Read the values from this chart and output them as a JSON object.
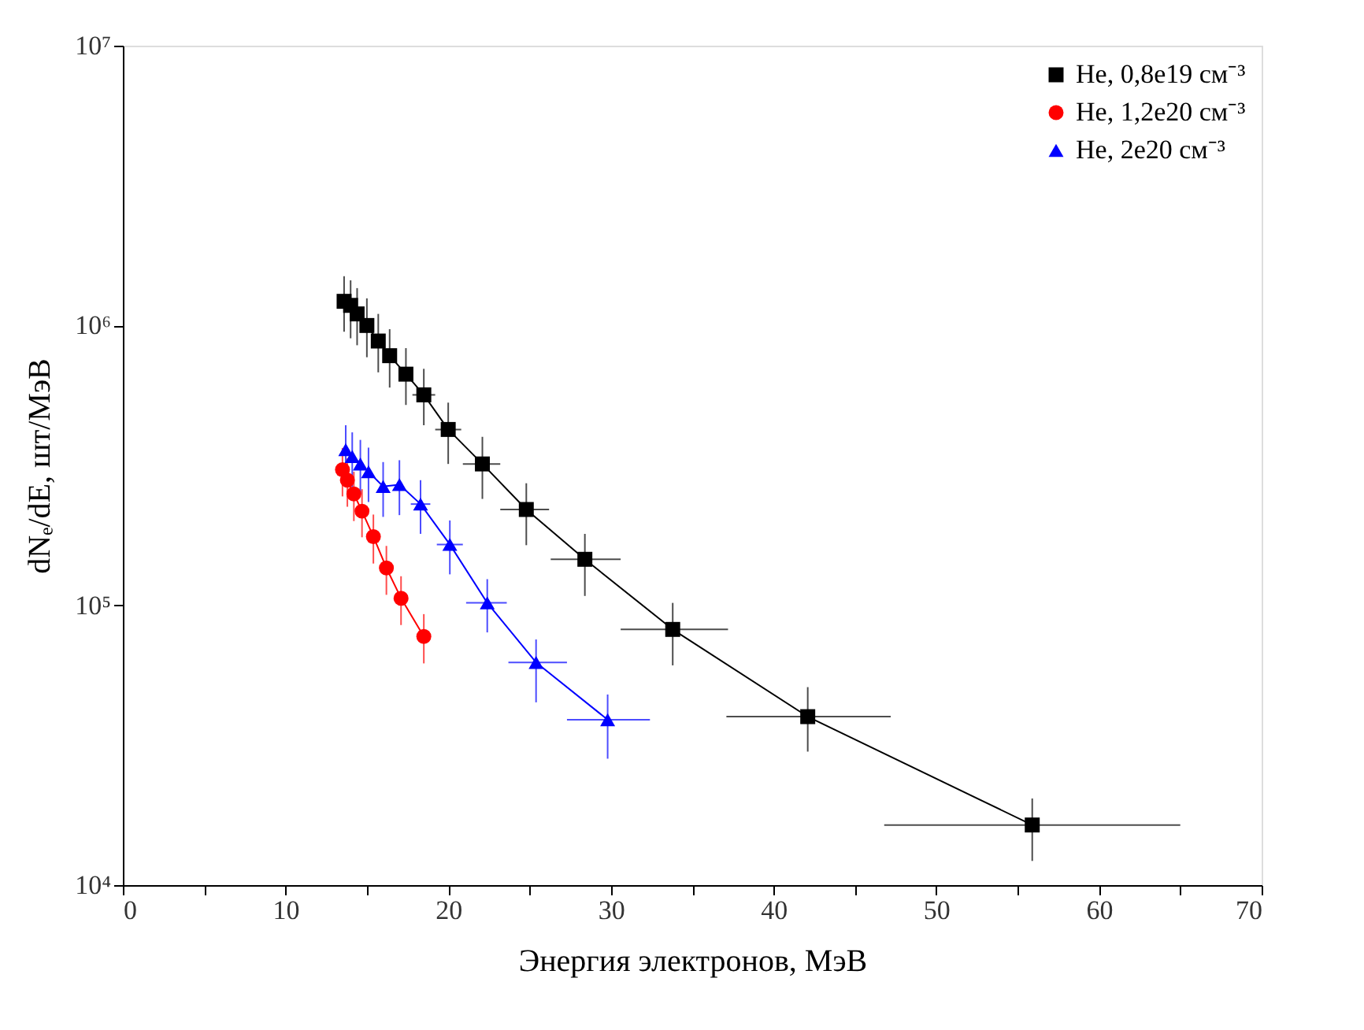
{
  "chart_data": {
    "type": "line",
    "xlabel": "Энергия электронов, МэВ",
    "ylabel": "dNₑ/dE, шт/МэВ",
    "log": "y",
    "xlim": [
      0,
      70
    ],
    "xticks": [
      0,
      {
        "value": 5,
        "label": null
      },
      10,
      {
        "value": 15,
        "label": null
      },
      20,
      {
        "value": 25,
        "label": null
      },
      30,
      {
        "value": 35,
        "label": null
      },
      40,
      {
        "value": 45,
        "label": null
      },
      50,
      {
        "value": 55,
        "label": null
      },
      60,
      {
        "value": 65,
        "label": null
      },
      70
    ],
    "ylim": [
      10000,
      10000000
    ],
    "yticks": [
      {
        "value": 10000,
        "label": "10⁴"
      },
      {
        "value": 100000,
        "label": "10⁵"
      },
      {
        "value": 1000000,
        "label": "10⁶"
      },
      {
        "value": 10000000,
        "label": "10⁷"
      }
    ],
    "grid": false,
    "legend": "top right",
    "line_style": "solid",
    "series": [
      {
        "name": "He, 0,8e19 см⁻³",
        "color": "#000000",
        "marker": "square",
        "x": [
          13.6,
          14.0,
          14.4,
          15.0,
          15.7,
          16.4,
          17.4,
          18.5,
          20.0,
          22.1,
          24.8,
          28.4,
          33.8,
          42.1,
          55.9
        ],
        "values": [
          1220000,
          1180000,
          1100000,
          1000000,
          880000,
          780000,
          670000,
          565000,
          425000,
          320000,
          220000,
          146000,
          82000,
          40000,
          16400
        ],
        "errors": [
          [
            950000,
            1500000
          ],
          [
            900000,
            1450000
          ],
          [
            850000,
            1360000
          ],
          [
            770000,
            1250000
          ],
          [
            680000,
            1100000
          ],
          [
            600000,
            970000
          ],
          [
            520000,
            830000
          ],
          [
            440000,
            700000
          ],
          [
            320000,
            530000
          ],
          [
            240000,
            400000
          ],
          [
            164000,
            273000
          ],
          [
            108000,
            180000
          ],
          [
            61000,
            102000
          ],
          [
            30000,
            51000
          ],
          [
            12200,
            20400
          ]
        ],
        "xerrors": [
          null,
          null,
          null,
          null,
          null,
          null,
          null,
          0.7,
          0.8,
          [
            20.9,
            23.2
          ],
          [
            23.2,
            26.2
          ],
          [
            26.3,
            30.6
          ],
          [
            30.6,
            37.2
          ],
          [
            37.1,
            47.2
          ],
          [
            46.8,
            65.0
          ]
        ]
      },
      {
        "name": "He, 1,2e20 см⁻³",
        "color": "#ff0000",
        "marker": "circle",
        "x": [
          13.5,
          13.8,
          14.2,
          14.7,
          15.4,
          16.2,
          17.1,
          18.5
        ],
        "values": [
          305000,
          280000,
          250000,
          217000,
          176000,
          136000,
          106000,
          77400
        ],
        "errors": [
          [
            245000,
            365000
          ],
          [
            225000,
            335000
          ],
          [
            200000,
            300000
          ],
          [
            175000,
            260000
          ],
          [
            141000,
            211000
          ],
          [
            109000,
            163000
          ],
          [
            85000,
            127000
          ],
          [
            62000,
            93000
          ]
        ]
      },
      {
        "name": "He, 2e20 см⁻³",
        "color": "#0000ff",
        "marker": "triangle",
        "x": [
          13.7,
          14.1,
          14.6,
          15.1,
          16.0,
          17.0,
          18.3,
          20.1,
          22.4,
          25.4,
          29.8
        ],
        "values": [
          360000,
          340000,
          320000,
          300000,
          266000,
          270000,
          230000,
          165000,
          102000,
          62500,
          39000
        ],
        "errors": [
          [
            280000,
            440000
          ],
          [
            265000,
            415000
          ],
          [
            250000,
            390000
          ],
          [
            234000,
            366000
          ],
          [
            207000,
            325000
          ],
          [
            210000,
            330000
          ],
          [
            180000,
            280000
          ],
          [
            129000,
            201000
          ],
          [
            80000,
            124000
          ],
          [
            45000,
            75500
          ],
          [
            28300,
            48000
          ]
        ],
        "xerrors": [
          null,
          null,
          null,
          null,
          null,
          null,
          0.6,
          0.8,
          [
            21.1,
            23.6
          ],
          [
            23.7,
            27.3
          ],
          [
            27.3,
            32.4
          ]
        ]
      }
    ]
  }
}
